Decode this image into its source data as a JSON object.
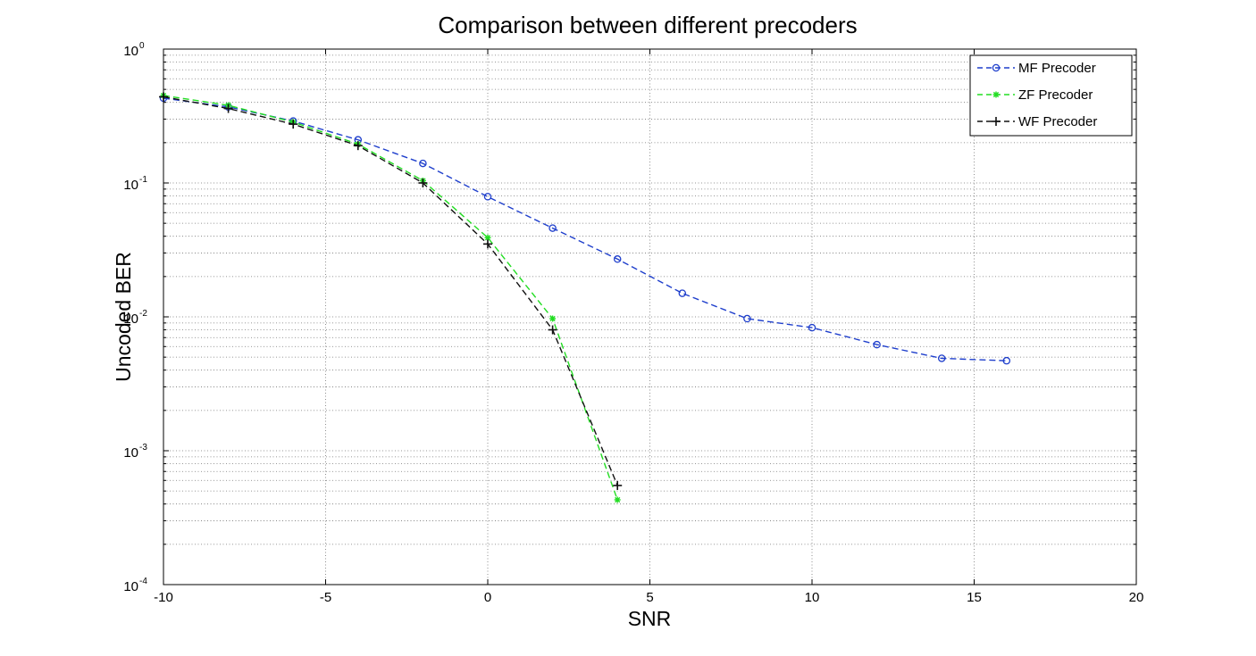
{
  "chart_data": {
    "type": "line",
    "title": "Comparison between different precoders",
    "xlabel": "SNR",
    "ylabel": "Uncoded BER",
    "xlim": [
      -10,
      20
    ],
    "ylim": [
      0.0001,
      1
    ],
    "yscale": "log",
    "grid": true,
    "legend_position": "top-right",
    "x_ticks": [
      "-10",
      "-5",
      "0",
      "5",
      "10",
      "15",
      "20"
    ],
    "y_ticks": [
      {
        "base": "10",
        "exp": "0"
      },
      {
        "base": "10",
        "exp": "-1"
      },
      {
        "base": "10",
        "exp": "-2"
      },
      {
        "base": "10",
        "exp": "-3"
      },
      {
        "base": "10",
        "exp": "-4"
      }
    ],
    "series": [
      {
        "name": "MF Precoder",
        "color": "#1f3fcc",
        "marker": "circle",
        "x": [
          -10,
          -8,
          -6,
          -4,
          -2,
          0,
          2,
          4,
          6,
          8,
          10,
          12,
          14,
          16
        ],
        "y": [
          0.43,
          0.37,
          0.29,
          0.21,
          0.14,
          0.079,
          0.046,
          0.027,
          0.015,
          0.0097,
          0.0083,
          0.0062,
          0.0049,
          0.0047
        ]
      },
      {
        "name": "ZF Precoder",
        "color": "#22dd22",
        "marker": "asterisk",
        "x": [
          -10,
          -8,
          -6,
          -4,
          -2,
          0,
          2,
          4
        ],
        "y": [
          0.45,
          0.38,
          0.285,
          0.195,
          0.104,
          0.039,
          0.0097,
          0.00043
        ]
      },
      {
        "name": "WF Precoder",
        "color": "#111111",
        "marker": "plus",
        "x": [
          -10,
          -8,
          -6,
          -4,
          -2,
          0,
          2,
          4
        ],
        "y": [
          0.44,
          0.36,
          0.275,
          0.19,
          0.1,
          0.035,
          0.008,
          0.00055
        ]
      }
    ]
  }
}
